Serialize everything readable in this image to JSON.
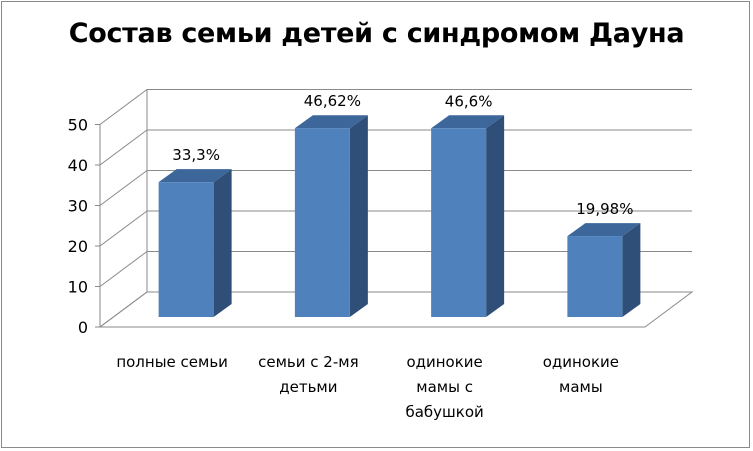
{
  "chart_data": {
    "type": "bar",
    "title": "Состав семьи детей с синдромом Дауна",
    "categories": [
      [
        "полные семьи"
      ],
      [
        "семьи с 2-мя",
        "детьми"
      ],
      [
        "одинокие",
        "мамы с",
        "бабушкой"
      ],
      [
        "одинокие",
        "мамы"
      ]
    ],
    "values": [
      33.3,
      46.62,
      46.6,
      19.98
    ],
    "data_labels": [
      "33,3%",
      "46,62%",
      "46,6%",
      "19,98%"
    ],
    "ylim": [
      0,
      50
    ],
    "yticks": [
      0,
      10,
      20,
      30,
      40,
      50
    ],
    "grid": true,
    "three_d": true,
    "colors": {
      "front": "#4f81bd",
      "side": "#2f4f78",
      "top": "#3d669a"
    }
  }
}
